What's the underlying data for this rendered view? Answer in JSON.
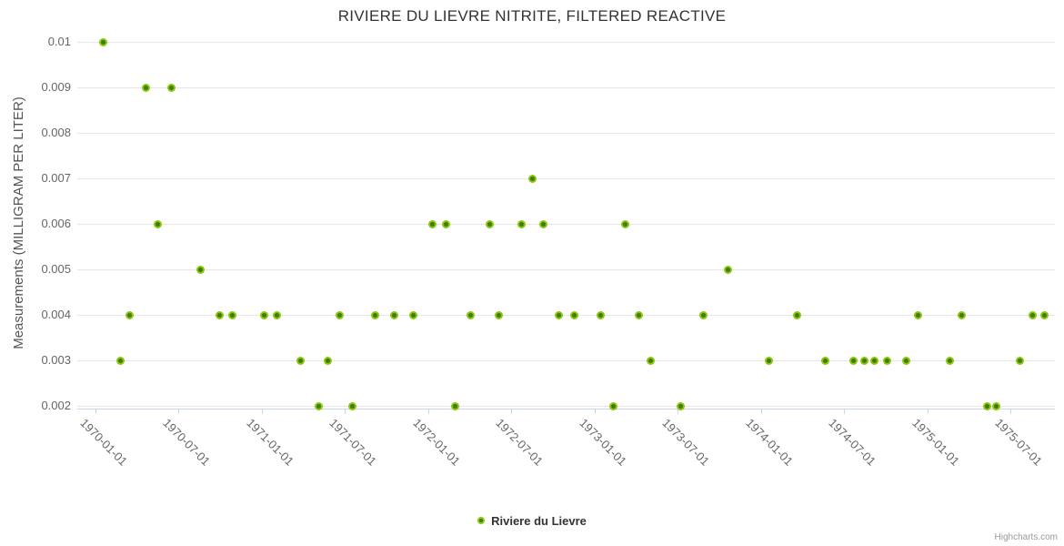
{
  "chart": {
    "title": "RIVIERE DU LIEVRE NITRITE, FILTERED REACTIVE",
    "credits": "Highcharts.com"
  },
  "chart_data": {
    "type": "scatter",
    "title": "RIVIERE DU LIEVRE NITRITE, FILTERED REACTIVE",
    "xlabel": "",
    "ylabel": "Measurements (MILLIGRAM PER LITER)",
    "ylim": [
      0.002,
      0.01
    ],
    "grid": "horizontal-only",
    "legend_position": "bottom-center",
    "y_ticks": [
      0.002,
      0.003,
      0.004,
      0.005,
      0.006,
      0.007,
      0.008,
      0.009,
      0.01
    ],
    "x_ticks": [
      "1970-01-01",
      "1970-07-01",
      "1971-01-01",
      "1971-07-01",
      "1972-01-01",
      "1972-07-01",
      "1973-01-01",
      "1973-07-01",
      "1974-01-01",
      "1974-07-01",
      "1975-01-01",
      "1975-07-01"
    ],
    "series": [
      {
        "name": "Riviere du Lievre",
        "marker_ring_color": "#8bc60a",
        "marker_core_color": "#3e7c00",
        "points": [
          [
            "1970-01-17",
            0.01
          ],
          [
            "1970-02-24",
            0.003
          ],
          [
            "1970-03-16",
            0.004
          ],
          [
            "1970-04-21",
            0.009
          ],
          [
            "1970-05-17",
            0.006
          ],
          [
            "1970-06-16",
            0.009
          ],
          [
            "1970-08-20",
            0.005
          ],
          [
            "1970-10-01",
            0.004
          ],
          [
            "1970-10-29",
            0.004
          ],
          [
            "1971-01-07",
            0.004
          ],
          [
            "1971-02-04",
            0.004
          ],
          [
            "1971-03-26",
            0.003
          ],
          [
            "1971-05-05",
            0.002
          ],
          [
            "1971-05-25",
            0.003
          ],
          [
            "1971-06-20",
            0.004
          ],
          [
            "1971-07-18",
            0.002
          ],
          [
            "1971-09-07",
            0.004
          ],
          [
            "1971-10-19",
            0.004
          ],
          [
            "1971-11-30",
            0.004
          ],
          [
            "1972-01-11",
            0.006
          ],
          [
            "1972-02-10",
            0.006
          ],
          [
            "1972-03-01",
            0.002
          ],
          [
            "1972-04-02",
            0.004
          ],
          [
            "1972-05-14",
            0.006
          ],
          [
            "1972-06-03",
            0.004
          ],
          [
            "1972-07-23",
            0.006
          ],
          [
            "1972-08-16",
            0.007
          ],
          [
            "1972-09-10",
            0.006
          ],
          [
            "1972-10-14",
            0.004
          ],
          [
            "1972-11-17",
            0.004
          ],
          [
            "1973-01-14",
            0.004
          ],
          [
            "1973-02-11",
            0.002
          ],
          [
            "1973-03-09",
            0.006
          ],
          [
            "1973-04-08",
            0.004
          ],
          [
            "1973-05-02",
            0.003
          ],
          [
            "1973-07-07",
            0.002
          ],
          [
            "1973-08-26",
            0.004
          ],
          [
            "1973-10-20",
            0.005
          ],
          [
            "1974-01-18",
            0.003
          ],
          [
            "1974-03-21",
            0.004
          ],
          [
            "1974-05-22",
            0.003
          ],
          [
            "1974-07-21",
            0.003
          ],
          [
            "1974-08-14",
            0.003
          ],
          [
            "1974-09-05",
            0.003
          ],
          [
            "1974-10-03",
            0.003
          ],
          [
            "1974-11-15",
            0.003
          ],
          [
            "1974-12-11",
            0.004
          ],
          [
            "1975-02-19",
            0.003
          ],
          [
            "1975-03-17",
            0.004
          ],
          [
            "1975-05-12",
            0.002
          ],
          [
            "1975-06-01",
            0.002
          ],
          [
            "1975-07-21",
            0.003
          ],
          [
            "1975-08-18",
            0.004
          ],
          [
            "1975-09-13",
            0.004
          ]
        ]
      }
    ]
  }
}
